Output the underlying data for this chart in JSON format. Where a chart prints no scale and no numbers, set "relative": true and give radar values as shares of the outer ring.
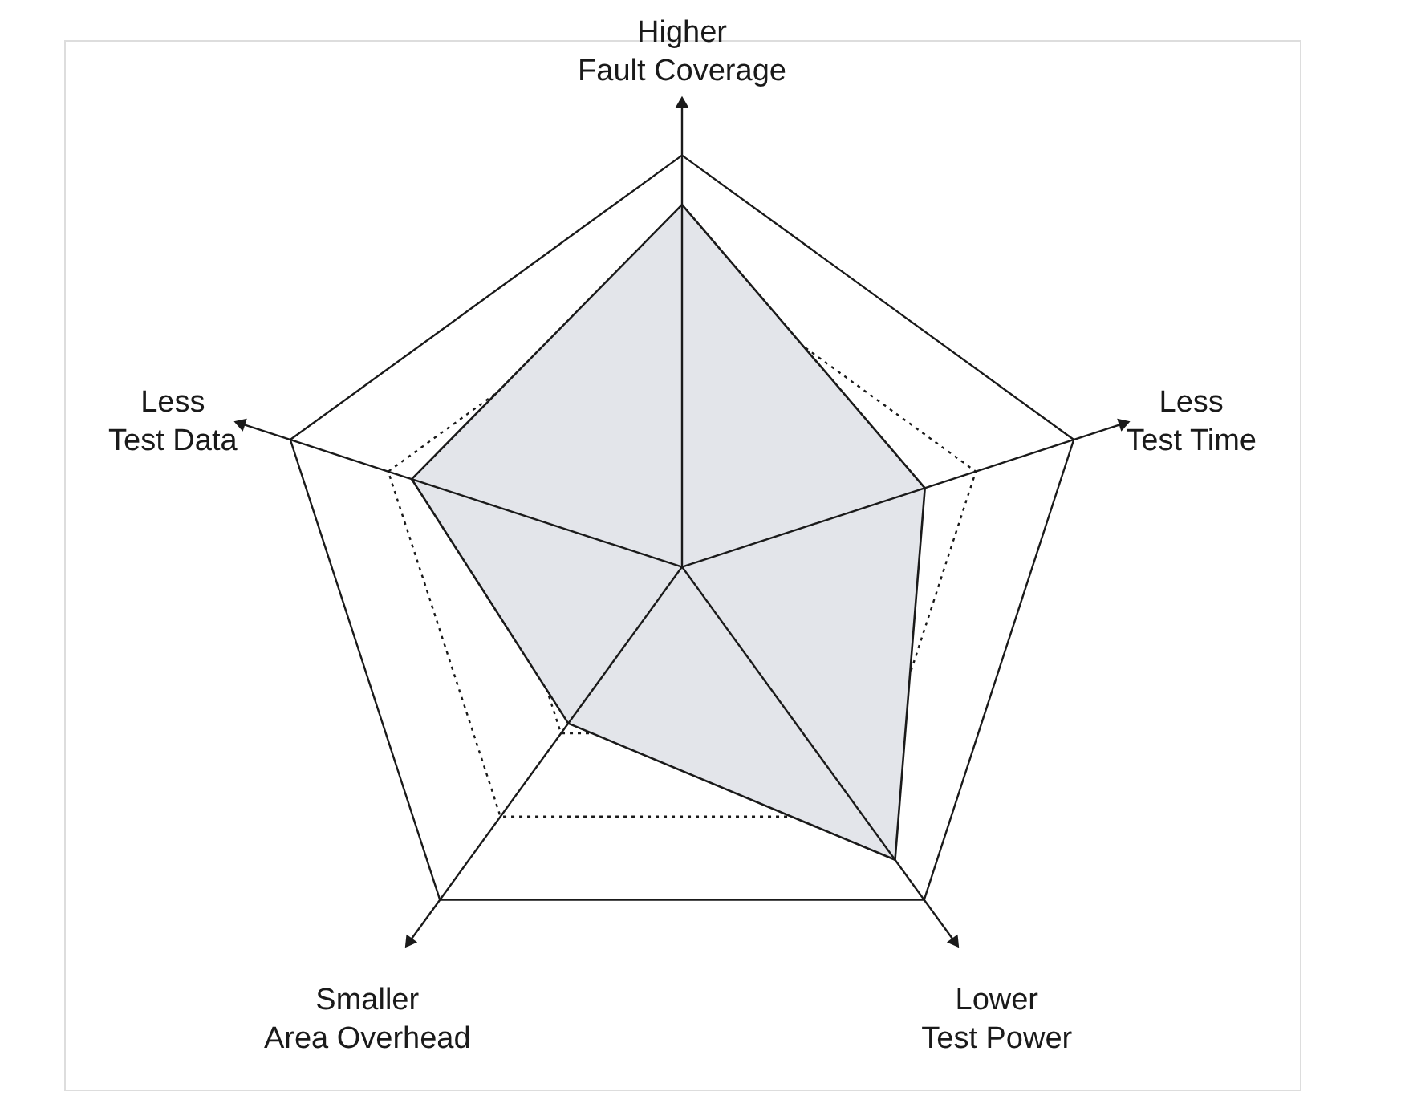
{
  "chart_data": {
    "type": "radar",
    "relative": true,
    "grid": true,
    "categories": [
      "Higher Fault Coverage",
      "Less Test Time",
      "Lower Test Power",
      "Smaller Area Overhead",
      "Less Test Data"
    ],
    "series": [
      {
        "color": "#e3e5ea",
        "values": [
          0.88,
          0.62,
          0.88,
          0.47,
          0.69
        ]
      }
    ]
  }
}
